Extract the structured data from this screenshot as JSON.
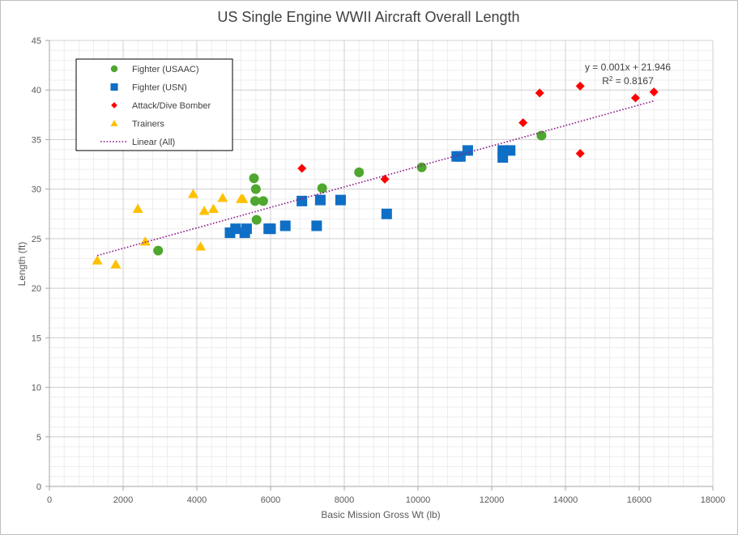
{
  "chart_data": {
    "type": "scatter",
    "title": "US Single Engine WWII Aircraft Overall Length",
    "xlabel": "Basic Mission Gross Wt (lb)",
    "ylabel": "Length (ft)",
    "xlim": [
      0,
      18000
    ],
    "ylim": [
      0,
      45
    ],
    "xticks": [
      0,
      2000,
      4000,
      6000,
      8000,
      10000,
      12000,
      14000,
      16000,
      18000
    ],
    "yticks": [
      0,
      5,
      10,
      15,
      20,
      25,
      30,
      35,
      40,
      45
    ],
    "grid": true,
    "legend_position": "top-left",
    "series": [
      {
        "name": "Fighter (USAAC)",
        "marker": "circle",
        "color": "#4ea72e",
        "points": [
          [
            2950,
            23.8
          ],
          [
            5550,
            31.1
          ],
          [
            5600,
            30.0
          ],
          [
            5580,
            28.8
          ],
          [
            5800,
            28.8
          ],
          [
            5620,
            26.9
          ],
          [
            7400,
            30.1
          ],
          [
            8400,
            31.7
          ],
          [
            10100,
            32.2
          ],
          [
            13350,
            35.4
          ]
        ]
      },
      {
        "name": "Fighter (USN)",
        "marker": "square",
        "color": "#0f6fc6",
        "points": [
          [
            4900,
            25.6
          ],
          [
            5050,
            26.0
          ],
          [
            5300,
            25.6
          ],
          [
            5350,
            26.0
          ],
          [
            5950,
            26.0
          ],
          [
            6000,
            26.0
          ],
          [
            6400,
            26.3
          ],
          [
            6850,
            28.8
          ],
          [
            7250,
            26.3
          ],
          [
            7350,
            28.9
          ],
          [
            7900,
            28.9
          ],
          [
            9150,
            27.5
          ],
          [
            11050,
            33.3
          ],
          [
            11150,
            33.3
          ],
          [
            11350,
            33.9
          ],
          [
            12300,
            33.2
          ],
          [
            12300,
            33.9
          ],
          [
            12500,
            33.9
          ]
        ]
      },
      {
        "name": "Attack/Dive Bomber",
        "marker": "diamond",
        "color": "#ff0000",
        "points": [
          [
            6850,
            32.1
          ],
          [
            9100,
            31.0
          ],
          [
            12850,
            36.7
          ],
          [
            13300,
            39.7
          ],
          [
            14400,
            40.4
          ],
          [
            14400,
            33.6
          ],
          [
            15900,
            39.2
          ],
          [
            16400,
            39.8
          ]
        ]
      },
      {
        "name": "Trainers",
        "marker": "triangle",
        "color": "#ffc000",
        "points": [
          [
            1300,
            22.8
          ],
          [
            1800,
            22.4
          ],
          [
            2400,
            28.0
          ],
          [
            2600,
            24.7
          ],
          [
            3900,
            29.5
          ],
          [
            4100,
            24.2
          ],
          [
            4200,
            27.8
          ],
          [
            4450,
            28.0
          ],
          [
            4700,
            29.1
          ],
          [
            5200,
            29.0
          ],
          [
            5250,
            29.0
          ]
        ]
      }
    ],
    "trendline": {
      "name": "Linear (All)",
      "type": "linear",
      "color": "#8b1a89",
      "style": "dotted",
      "x_range": [
        1300,
        16400
      ],
      "y_range": [
        23.3,
        38.9
      ],
      "equation": "y = 0.001x + 21.946",
      "r2_prefix": "R",
      "r2_sup": "2",
      "r2_suffix": " = 0.8167"
    }
  }
}
